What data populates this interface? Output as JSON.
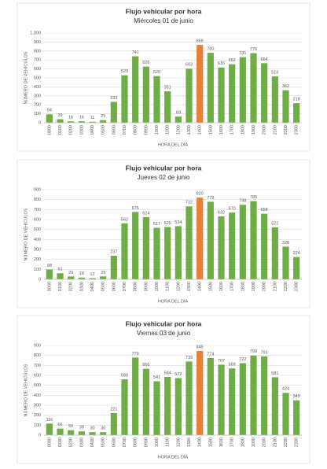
{
  "chart_data": [
    {
      "type": "bar",
      "title": "Flujo vehicular por hora",
      "subtitle": "Miércoles 01 de junio",
      "x_label": "HORA DEL DÍA",
      "y_label": "NÚMERO DE VEHÍCULOS",
      "categories": [
        "0000",
        "0100",
        "0200",
        "0300",
        "0400",
        "0500",
        "0600",
        "0700",
        "0800",
        "0900",
        "1000",
        "1100",
        "1200",
        "1300",
        "1400",
        "1500",
        "1600",
        "1700",
        "1800",
        "1900",
        "2000",
        "2100",
        "2200",
        "2300"
      ],
      "values": [
        94,
        39,
        16,
        16,
        11,
        29,
        233,
        529,
        741,
        626,
        520,
        351,
        69,
        603,
        868,
        780,
        616,
        652,
        731,
        776,
        664,
        516,
        362,
        218
      ],
      "colors": [
        "#70ad47",
        "#70ad47",
        "#70ad47",
        "#70ad47",
        "#70ad47",
        "#70ad47",
        "#70ad47",
        "#70ad47",
        "#70ad47",
        "#70ad47",
        "#70ad47",
        "#70ad47",
        "#70ad47",
        "#70ad47",
        "#ed7d31",
        "#70ad47",
        "#70ad47",
        "#70ad47",
        "#70ad47",
        "#70ad47",
        "#70ad47",
        "#70ad47",
        "#70ad47",
        "#70ad47"
      ],
      "ylim": [
        0,
        1000
      ],
      "yticks": [
        0,
        100,
        200,
        300,
        400,
        500,
        600,
        700,
        800,
        900,
        {
          "value": 1000,
          "label": "1,000"
        }
      ],
      "grid": true
    },
    {
      "type": "bar",
      "title": "Flujo vehicular por hora",
      "subtitle": "Jueves 02 de junio",
      "x_label": "HORA DEL DÍA",
      "y_label": "NÚMERO DE VEHÍCULOS",
      "categories": [
        "0000",
        "0100",
        "0200",
        "0300",
        "0400",
        "0500",
        "0600",
        "0700",
        "0800",
        "0900",
        "1000",
        "1100",
        "1200",
        "1300",
        "1400",
        "1500",
        "1600",
        "1700",
        "1800",
        "1900",
        "2000",
        "2100",
        "2200",
        "2300"
      ],
      "values": [
        98,
        61,
        29,
        18,
        12,
        29,
        237,
        562,
        676,
        624,
        517,
        525,
        534,
        732,
        820,
        778,
        632,
        670,
        748,
        785,
        658,
        521,
        328,
        224
      ],
      "colors": [
        "#70ad47",
        "#70ad47",
        "#70ad47",
        "#70ad47",
        "#70ad47",
        "#70ad47",
        "#70ad47",
        "#70ad47",
        "#70ad47",
        "#70ad47",
        "#70ad47",
        "#70ad47",
        "#70ad47",
        "#70ad47",
        "#ed7d31",
        "#70ad47",
        "#70ad47",
        "#70ad47",
        "#70ad47",
        "#70ad47",
        "#70ad47",
        "#70ad47",
        "#70ad47",
        "#70ad47"
      ],
      "ylim": [
        0,
        900
      ],
      "yticks": [
        0,
        100,
        200,
        300,
        400,
        500,
        600,
        700,
        800,
        900
      ],
      "grid": true
    },
    {
      "type": "bar",
      "title": "Flujo vehicular por hora",
      "subtitle": "Viernes 03 de junio",
      "x_label": "HORA DEL DÍA",
      "y_label": "NÚMERO DE VEHÍCULOS",
      "categories": [
        "0000",
        "0100",
        "0200",
        "0300",
        "0400",
        "0500",
        "0600",
        "0700",
        "0800",
        "0900",
        "1000",
        "1100",
        "1200",
        "1300",
        "1400",
        "1500",
        "1600",
        "1700",
        "1800",
        "1900",
        "2000",
        "2100",
        "2200",
        "2300"
      ],
      "values": [
        116,
        66,
        50,
        38,
        30,
        30,
        221,
        560,
        779,
        666,
        541,
        584,
        572,
        739,
        845,
        774,
        707,
        669,
        722,
        799,
        791,
        581,
        424,
        349
      ],
      "colors": [
        "#70ad47",
        "#70ad47",
        "#70ad47",
        "#70ad47",
        "#70ad47",
        "#70ad47",
        "#70ad47",
        "#70ad47",
        "#70ad47",
        "#70ad47",
        "#70ad47",
        "#70ad47",
        "#70ad47",
        "#70ad47",
        "#ed7d31",
        "#70ad47",
        "#70ad47",
        "#70ad47",
        "#70ad47",
        "#70ad47",
        "#70ad47",
        "#70ad47",
        "#70ad47",
        "#70ad47"
      ],
      "ylim": [
        0,
        900
      ],
      "yticks": [
        0,
        100,
        200,
        300,
        400,
        500,
        600,
        700,
        800,
        900
      ],
      "grid": true
    }
  ]
}
